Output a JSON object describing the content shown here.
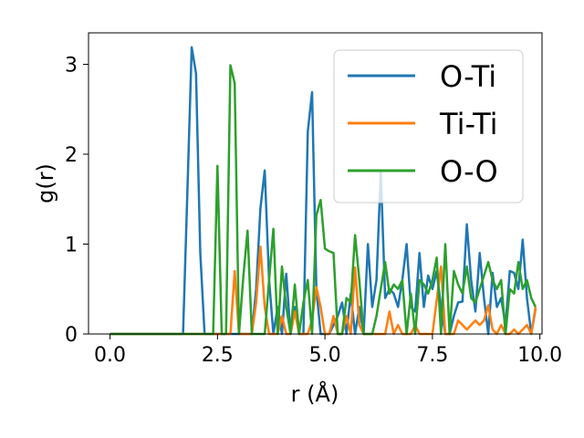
{
  "chart_data": {
    "type": "line",
    "xlabel": "r (Å)",
    "ylabel": "g(r)",
    "xlim": [
      -0.5,
      10.05
    ],
    "ylim": [
      0,
      3.35
    ],
    "xticks": [
      0.0,
      2.5,
      5.0,
      7.5,
      10.0
    ],
    "xtick_labels": [
      "0.0",
      "2.5",
      "5.0",
      "7.5",
      "10.0"
    ],
    "yticks": [
      0,
      1,
      2,
      3
    ],
    "ytick_labels": [
      "0",
      "1",
      "2",
      "3"
    ],
    "grid": false,
    "legend": "top-right",
    "series": [
      {
        "name": "O-Ti",
        "color": "#1f77b4",
        "x": [
          0.0,
          1.7,
          1.8,
          1.9,
          2.0,
          2.1,
          2.2,
          3.3,
          3.4,
          3.5,
          3.6,
          3.7,
          3.8,
          3.9,
          4.0,
          4.1,
          4.2,
          4.3,
          4.4,
          4.5,
          4.6,
          4.7,
          4.8,
          4.9,
          5.0,
          5.1,
          5.2,
          5.3,
          5.4,
          5.5,
          5.6,
          5.7,
          5.8,
          5.9,
          6.0,
          6.1,
          6.2,
          6.3,
          6.4,
          6.5,
          6.6,
          6.7,
          6.8,
          6.9,
          7.0,
          7.1,
          7.2,
          7.3,
          7.4,
          7.5,
          7.6,
          7.7,
          7.8,
          7.9,
          8.0,
          8.1,
          8.2,
          8.3,
          8.4,
          8.5,
          8.6,
          8.7,
          8.8,
          8.9,
          9.0,
          9.1,
          9.2,
          9.3,
          9.4,
          9.5,
          9.6,
          9.7,
          9.8,
          9.9
        ],
        "y": [
          0.0,
          0.0,
          1.6,
          3.19,
          2.9,
          0.9,
          0.0,
          0.0,
          0.5,
          1.4,
          1.82,
          0.6,
          0.0,
          0.3,
          0.0,
          0.67,
          0.0,
          0.3,
          0.0,
          0.0,
          2.25,
          2.69,
          0.5,
          0.0,
          0.0,
          0.0,
          0.1,
          0.2,
          0.35,
          0.0,
          0.45,
          0.0,
          0.3,
          0.0,
          1.0,
          0.3,
          0.6,
          1.8,
          0.4,
          0.5,
          0.45,
          0.3,
          0.6,
          1.0,
          0.3,
          0.25,
          0.9,
          0.3,
          0.65,
          0.5,
          0.7,
          0.3,
          0.0,
          0.0,
          0.2,
          0.35,
          0.36,
          1.22,
          0.6,
          0.25,
          0.9,
          0.4,
          0.0,
          0.68,
          0.3,
          0.4,
          0.1,
          0.7,
          0.68,
          0.5,
          1.05,
          0.4,
          0.0,
          0.28
        ]
      },
      {
        "name": "Ti-Ti",
        "color": "#ff7f0e",
        "x": [
          0.0,
          2.8,
          2.9,
          3.0,
          3.1,
          3.2,
          3.3,
          3.4,
          3.5,
          3.6,
          3.7,
          3.8,
          3.9,
          4.0,
          4.1,
          4.2,
          4.3,
          4.4,
          4.5,
          4.6,
          4.7,
          4.8,
          4.9,
          5.0,
          5.1,
          5.2,
          5.3,
          5.4,
          5.5,
          5.6,
          5.7,
          5.8,
          5.9,
          6.0,
          6.1,
          6.2,
          6.3,
          6.4,
          6.5,
          6.6,
          6.7,
          6.8,
          6.9,
          7.0,
          7.1,
          7.2,
          7.3,
          7.4,
          7.5,
          7.6,
          7.7,
          7.8,
          7.9,
          8.0,
          8.1,
          8.2,
          8.3,
          8.4,
          8.5,
          8.6,
          8.7,
          8.8,
          8.9,
          9.0,
          9.1,
          9.2,
          9.3,
          9.4,
          9.5,
          9.6,
          9.7,
          9.8,
          9.9
        ],
        "y": [
          0.0,
          0.0,
          0.7,
          0.0,
          0.0,
          0.0,
          0.0,
          0.35,
          0.97,
          0.3,
          0.0,
          0.0,
          0.0,
          0.2,
          0.0,
          0.0,
          0.25,
          0.0,
          0.0,
          0.0,
          0.15,
          0.52,
          0.3,
          0.0,
          0.0,
          0.2,
          0.0,
          0.0,
          0.2,
          0.0,
          0.74,
          0.1,
          0.0,
          0.0,
          0.0,
          0.0,
          0.0,
          0.0,
          0.25,
          0.0,
          0.1,
          0.0,
          0.0,
          0.0,
          0.1,
          0.0,
          0.0,
          0.0,
          0.0,
          0.38,
          0.75,
          0.0,
          0.0,
          0.0,
          0.15,
          0.1,
          0.05,
          0.1,
          0.15,
          0.1,
          0.15,
          0.32,
          0.05,
          0.0,
          0.1,
          0.0,
          0.0,
          0.05,
          0.0,
          0.05,
          0.1,
          0.0,
          0.3
        ]
      },
      {
        "name": "O-O",
        "color": "#2ca02c",
        "x": [
          0.0,
          2.4,
          2.5,
          2.6,
          2.7,
          2.8,
          2.9,
          3.0,
          3.1,
          3.2,
          3.3,
          3.4,
          3.5,
          3.6,
          3.7,
          3.8,
          3.9,
          4.0,
          4.1,
          4.2,
          4.3,
          4.4,
          4.5,
          4.6,
          4.7,
          4.8,
          4.9,
          5.0,
          5.1,
          5.2,
          5.3,
          5.4,
          5.5,
          5.6,
          5.7,
          5.8,
          5.9,
          6.0,
          6.1,
          6.2,
          6.3,
          6.4,
          6.5,
          6.6,
          6.7,
          6.8,
          6.9,
          7.0,
          7.1,
          7.2,
          7.3,
          7.4,
          7.5,
          7.6,
          7.7,
          7.8,
          7.9,
          8.0,
          8.1,
          8.2,
          8.3,
          8.4,
          8.5,
          8.6,
          8.7,
          8.8,
          8.9,
          9.0,
          9.1,
          9.2,
          9.3,
          9.4,
          9.5,
          9.6,
          9.7,
          9.8,
          9.9
        ],
        "y": [
          0.0,
          0.0,
          1.87,
          0.0,
          0.0,
          2.99,
          2.79,
          0.0,
          0.63,
          1.15,
          0.0,
          0.0,
          0.0,
          0.0,
          0.6,
          1.17,
          0.0,
          0.75,
          0.3,
          0.0,
          0.55,
          0.0,
          0.35,
          0.6,
          0.0,
          1.32,
          1.49,
          0.95,
          0.92,
          0.9,
          0.0,
          0.0,
          0.4,
          0.35,
          1.1,
          0.6,
          0.0,
          0.0,
          0.0,
          0.2,
          0.5,
          0.8,
          0.45,
          0.55,
          0.5,
          0.6,
          0.0,
          0.45,
          0.0,
          0.6,
          0.55,
          0.45,
          0.6,
          0.85,
          0.0,
          1.0,
          0.0,
          0.7,
          0.55,
          0.45,
          0.75,
          0.4,
          0.35,
          0.5,
          0.65,
          0.8,
          0.6,
          0.5,
          0.6,
          0.0,
          0.5,
          0.45,
          0.8,
          0.5,
          0.6,
          0.4,
          0.3
        ]
      }
    ]
  }
}
